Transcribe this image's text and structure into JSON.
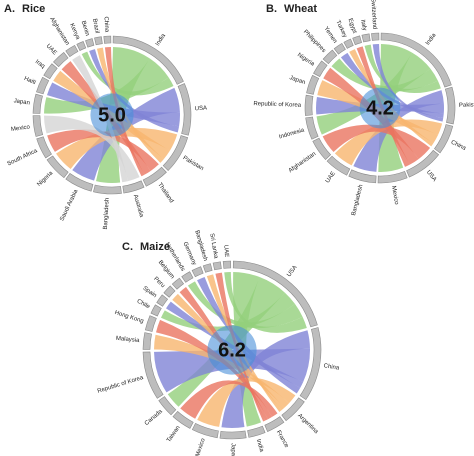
{
  "panels": [
    {
      "label": "A.",
      "title": "Rice",
      "center_value": "5.0",
      "countries": [
        "India",
        "USA",
        "Pakistan",
        "Thailand",
        "Australia",
        "Bangladesh",
        "Saudi Arabia",
        "Nigeria",
        "South Africa",
        "Mexico",
        "Japan",
        "Haiti",
        "Iraq",
        "UAE",
        "Afghanistan",
        "Kenya",
        "Benin",
        "Brazil",
        "China"
      ]
    },
    {
      "label": "B.",
      "title": "Wheat",
      "center_value": "4.2",
      "countries": [
        "India",
        "Pakistan",
        "China",
        "USA",
        "Mexico",
        "Bangladesh",
        "UAE",
        "Afghanistan",
        "Indonesia",
        "Republic of Korea",
        "Japan",
        "Nigeria",
        "Philippines",
        "Yemen",
        "Turkey",
        "Egypt",
        "Italy",
        "Switzerland"
      ]
    },
    {
      "label": "C.",
      "title": "Maize",
      "center_value": "6.2",
      "countries": [
        "USA",
        "China",
        "Argentina",
        "France",
        "India",
        "Japan",
        "Mexico",
        "Taiwan",
        "Canada",
        "Republic of Korea",
        "Malaysia",
        "Hong Kong",
        "Chile",
        "Spain",
        "Peru",
        "Belgium",
        "Netherlands",
        "Germany",
        "Bangladesh",
        "Sri Lanka",
        "UAE"
      ]
    }
  ]
}
